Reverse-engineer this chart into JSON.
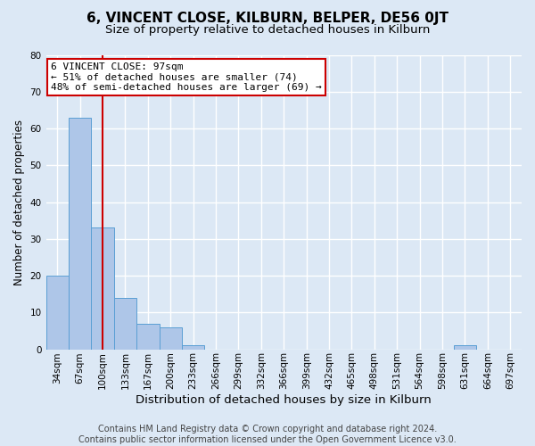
{
  "title": "6, VINCENT CLOSE, KILBURN, BELPER, DE56 0JT",
  "subtitle": "Size of property relative to detached houses in Kilburn",
  "xlabel": "Distribution of detached houses by size in Kilburn",
  "ylabel": "Number of detached properties",
  "footer_line1": "Contains HM Land Registry data © Crown copyright and database right 2024.",
  "footer_line2": "Contains public sector information licensed under the Open Government Licence v3.0.",
  "annotation_line1": "6 VINCENT CLOSE: 97sqm",
  "annotation_line2": "← 51% of detached houses are smaller (74)",
  "annotation_line3": "48% of semi-detached houses are larger (69) →",
  "bin_labels": [
    "34sqm",
    "67sqm",
    "100sqm",
    "133sqm",
    "167sqm",
    "200sqm",
    "233sqm",
    "266sqm",
    "299sqm",
    "332sqm",
    "366sqm",
    "399sqm",
    "432sqm",
    "465sqm",
    "498sqm",
    "531sqm",
    "564sqm",
    "598sqm",
    "631sqm",
    "664sqm",
    "697sqm"
  ],
  "bar_values": [
    20,
    63,
    33,
    14,
    7,
    6,
    1,
    0,
    0,
    0,
    0,
    0,
    0,
    0,
    0,
    0,
    0,
    0,
    1,
    0,
    0
  ],
  "bar_color": "#aec6e8",
  "bar_edge_color": "#5a9fd4",
  "vline_x": 2.0,
  "vline_color": "#cc0000",
  "ylim": [
    0,
    80
  ],
  "yticks": [
    0,
    10,
    20,
    30,
    40,
    50,
    60,
    70,
    80
  ],
  "background_color": "#dce8f5",
  "grid_color": "#ffffff",
  "title_fontsize": 11,
  "subtitle_fontsize": 9.5,
  "xlabel_fontsize": 9.5,
  "ylabel_fontsize": 8.5,
  "tick_fontsize": 7.5,
  "annotation_fontsize": 8,
  "footer_fontsize": 7
}
